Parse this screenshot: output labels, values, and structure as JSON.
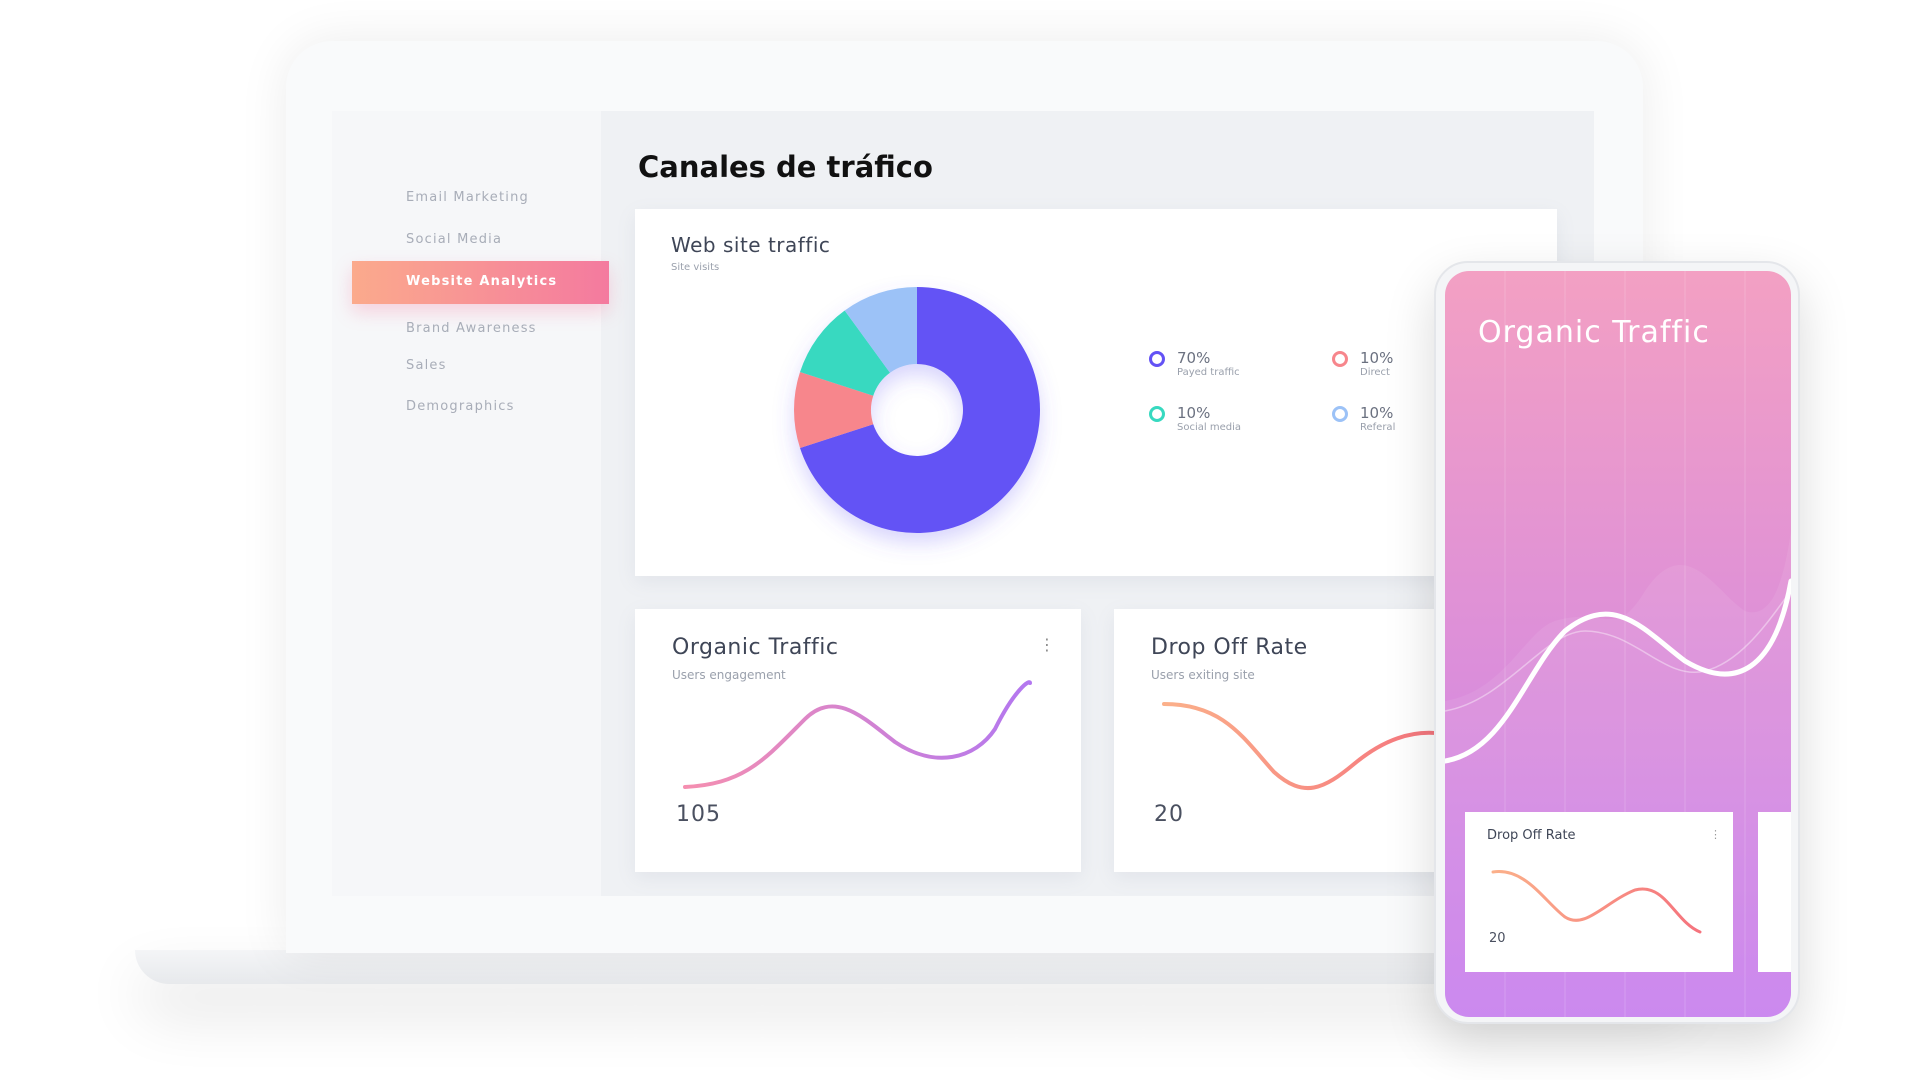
{
  "sidebar": {
    "items": [
      "Email Marketing",
      "Social Media",
      "Website Analytics",
      "Brand Awareness",
      "Sales",
      "Demographics"
    ]
  },
  "title": "Canales de tráfico",
  "web_traffic": {
    "title": "Web site traffic",
    "subtitle": "Site visits",
    "chart": {
      "type": "donut",
      "categories": [
        "Payed traffic",
        "Direct",
        "Social media",
        "Referal"
      ],
      "values": [
        70,
        10,
        10,
        10
      ],
      "value_labels": [
        "70%",
        "10%",
        "10%",
        "10%"
      ],
      "colors": [
        "#6352f5",
        "#f7868c",
        "#37d9c0",
        "#9cc2f7"
      ]
    }
  },
  "organic": {
    "title": "Organic Traffic",
    "subtitle": "Users engagement",
    "value": 105
  },
  "drop_off": {
    "title": "Drop Off Rate",
    "subtitle": "Users exiting site",
    "value": 20
  },
  "phone": {
    "title": "Organic Traffic",
    "card": {
      "title": "Drop Off Rate",
      "value": 20
    }
  }
}
